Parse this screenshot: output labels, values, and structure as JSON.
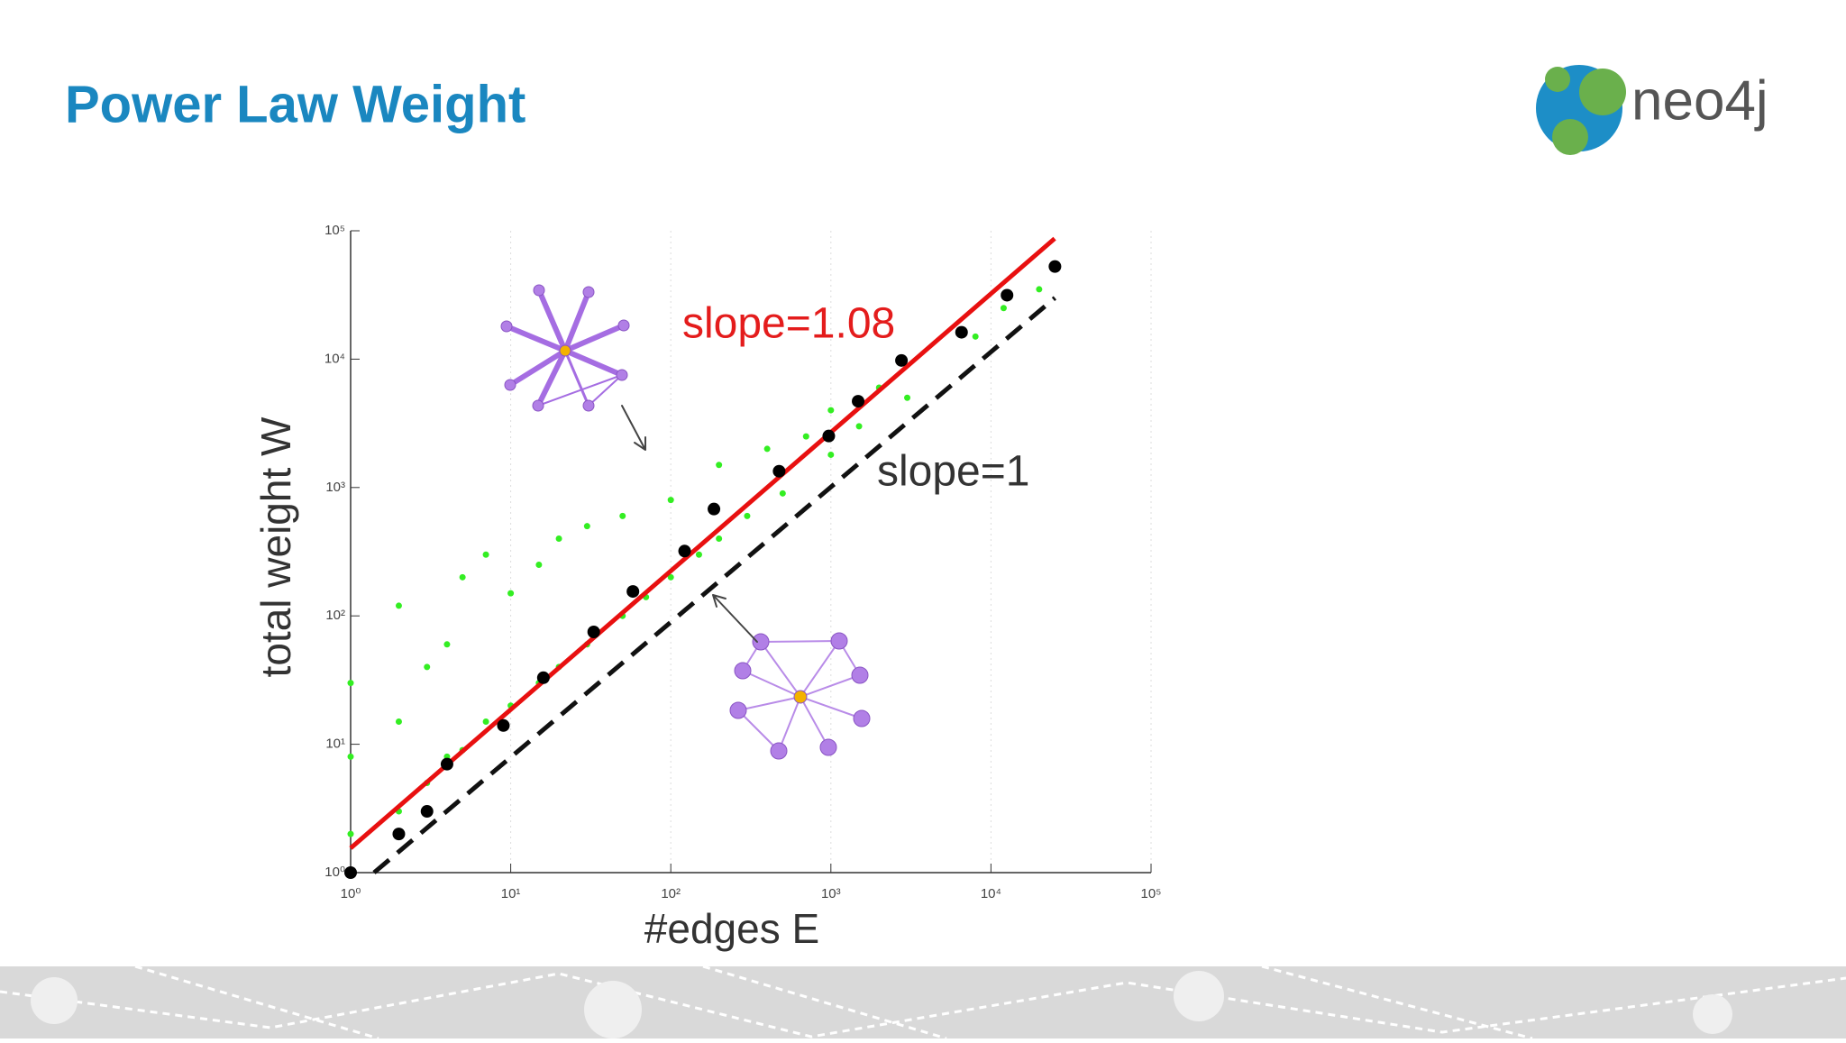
{
  "slide": {
    "title": "Power Law Weight",
    "logo": "neo4j"
  },
  "chart_data": {
    "type": "scatter",
    "xlabel": "#edges E",
    "ylabel": "total weight W",
    "xscale": "log",
    "yscale": "log",
    "xlim": [
      1,
      100000
    ],
    "ylim": [
      1,
      100000
    ],
    "xticks": [
      {
        "value": 1,
        "label": "10⁰"
      },
      {
        "value": 10,
        "label": "10¹"
      },
      {
        "value": 100,
        "label": "10²"
      },
      {
        "value": 1000,
        "label": "10³"
      },
      {
        "value": 10000,
        "label": "10⁴"
      },
      {
        "value": 100000,
        "label": "10⁵"
      }
    ],
    "yticks": [
      {
        "value": 1,
        "label": "10⁰"
      },
      {
        "value": 10,
        "label": "10¹"
      },
      {
        "value": 100,
        "label": "10²"
      },
      {
        "value": 1000,
        "label": "10³"
      },
      {
        "value": 10000,
        "label": "10⁴"
      },
      {
        "value": 100000,
        "label": "10⁵"
      }
    ],
    "grid": true,
    "annotations": [
      {
        "text": "slope=1.08",
        "color": "#e41c1c"
      },
      {
        "text": "slope=1",
        "color": "#333333"
      }
    ],
    "series": [
      {
        "type": "scatter",
        "color": "#33ee22",
        "size": 3.5,
        "x": [
          1,
          1,
          1,
          2,
          2,
          2,
          3,
          3,
          4,
          4,
          5,
          5,
          7,
          7,
          10,
          10,
          15,
          15,
          20,
          20,
          30,
          30,
          50,
          50,
          70,
          100,
          100,
          150,
          200,
          200,
          300,
          400,
          500,
          700,
          1000,
          1000,
          1500,
          2000,
          3000,
          8000,
          12000,
          20000
        ],
        "values": [
          2,
          8,
          30,
          3,
          15,
          120,
          5,
          40,
          8,
          60,
          9,
          200,
          15,
          300,
          20,
          150,
          30,
          250,
          40,
          400,
          60,
          500,
          100,
          600,
          140,
          200,
          800,
          300,
          400,
          1500,
          600,
          2000,
          900,
          2500,
          1800,
          4000,
          3000,
          6000,
          5000,
          15000,
          25000,
          35000
        ]
      },
      {
        "type": "line",
        "color": "#e81010",
        "dash": false,
        "x": [
          1,
          25000
        ],
        "values": [
          1.55,
          87000
        ]
      },
      {
        "type": "line",
        "color": "#111111",
        "dash": true,
        "x": [
          1.4,
          25100
        ],
        "values": [
          1,
          30000
        ]
      },
      {
        "type": "scatter",
        "color": "#000000",
        "size": 7,
        "x": [
          1,
          2,
          3,
          4,
          9,
          16,
          33,
          58,
          122,
          186,
          475,
          970,
          1480,
          2760,
          6550,
          12600,
          25100
        ],
        "values": [
          1,
          2,
          3,
          7,
          14,
          33,
          75,
          155,
          320,
          680,
          1340,
          2520,
          4700,
          9770,
          16200,
          31500,
          52700
        ]
      }
    ]
  }
}
